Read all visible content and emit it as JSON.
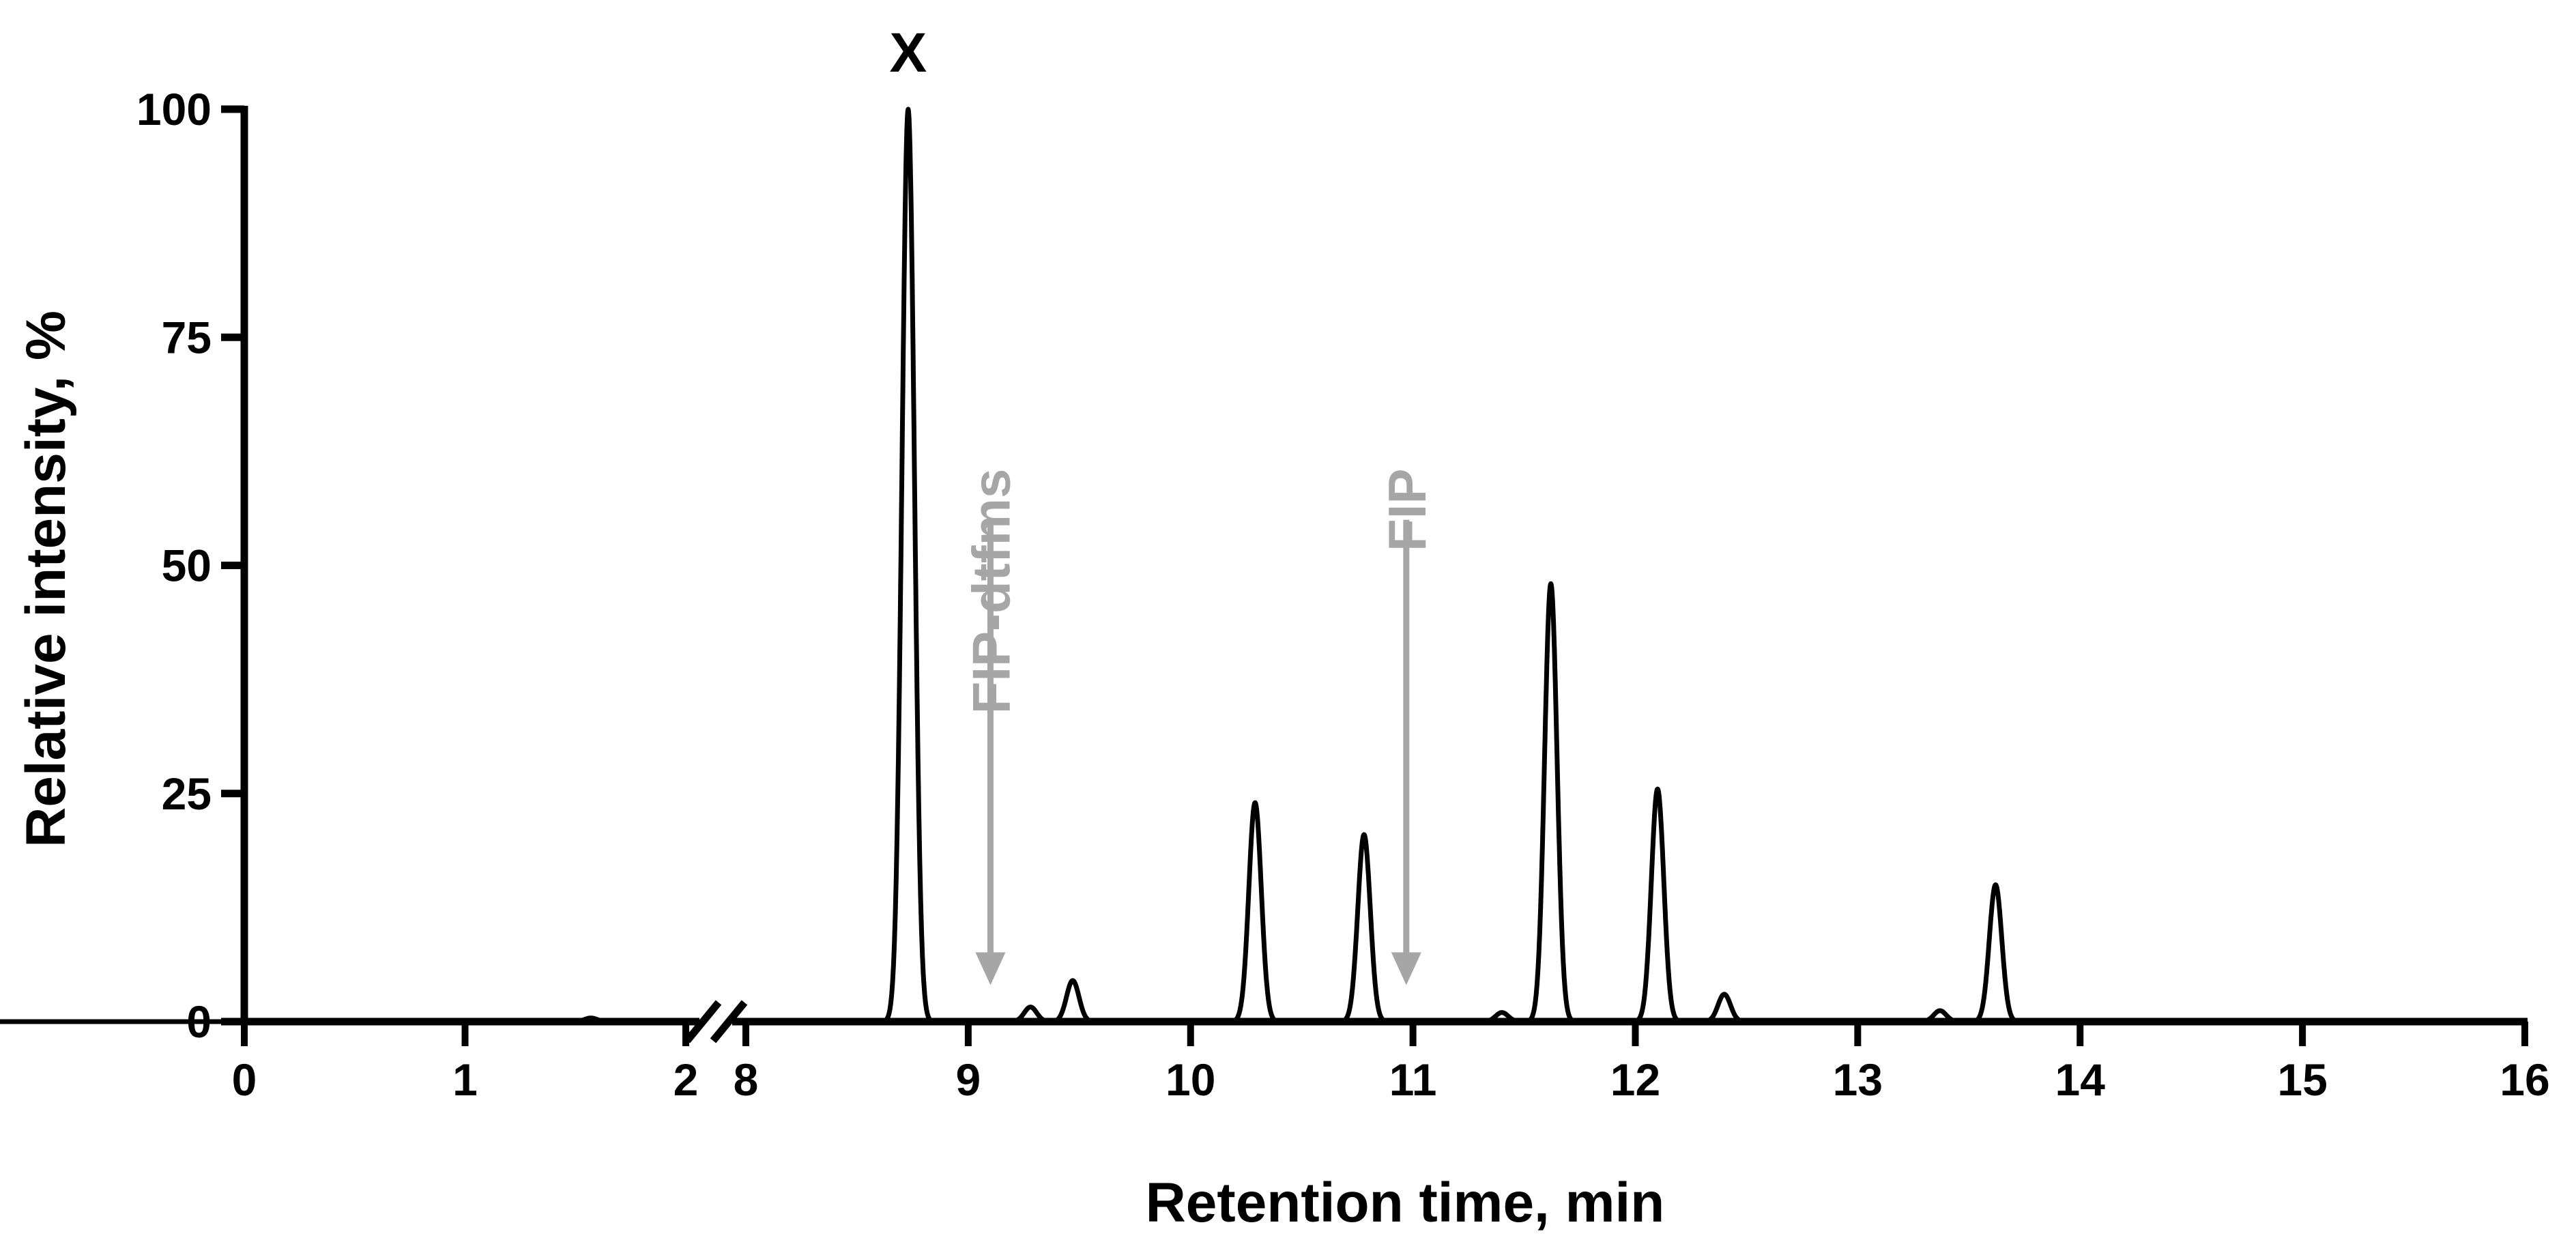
{
  "chart_data": {
    "type": "line",
    "title": "",
    "xlabel": "Retention time, min",
    "ylabel": "Relative intensity, %",
    "ylim": [
      0,
      100
    ],
    "yticks": [
      0,
      25,
      50,
      75,
      100
    ],
    "x_segments": [
      {
        "range": [
          0,
          2
        ],
        "ticks": [
          0,
          1,
          2
        ]
      },
      {
        "range": [
          8,
          16
        ],
        "ticks": [
          8,
          9,
          10,
          11,
          12,
          13,
          14,
          15,
          16
        ]
      }
    ],
    "axis_break": "between 2 and 8",
    "grid": false,
    "legend": "none",
    "series": [
      {
        "color": "#000000",
        "peaks": [
          {
            "x": 1.57,
            "y": 0.4
          },
          {
            "x": 8.73,
            "y": 100
          },
          {
            "x": 9.28,
            "y": 1.6
          },
          {
            "x": 9.47,
            "y": 4.5
          },
          {
            "x": 10.29,
            "y": 24
          },
          {
            "x": 10.78,
            "y": 20.5
          },
          {
            "x": 11.4,
            "y": 1.0
          },
          {
            "x": 11.62,
            "y": 48
          },
          {
            "x": 12.1,
            "y": 25.5
          },
          {
            "x": 12.4,
            "y": 3.0
          },
          {
            "x": 13.37,
            "y": 1.2
          },
          {
            "x": 13.62,
            "y": 15
          }
        ]
      }
    ],
    "annotations": [
      {
        "text": "X",
        "x": 8.73,
        "color": "#000000"
      },
      {
        "text": "FIP-dtfms",
        "x": 9.1,
        "y_from": 55,
        "y_to": 4,
        "color": "#a6a6a6"
      },
      {
        "text": "FIP",
        "x": 10.97,
        "y_from": 55,
        "y_to": 4,
        "color": "#a6a6a6"
      }
    ]
  }
}
